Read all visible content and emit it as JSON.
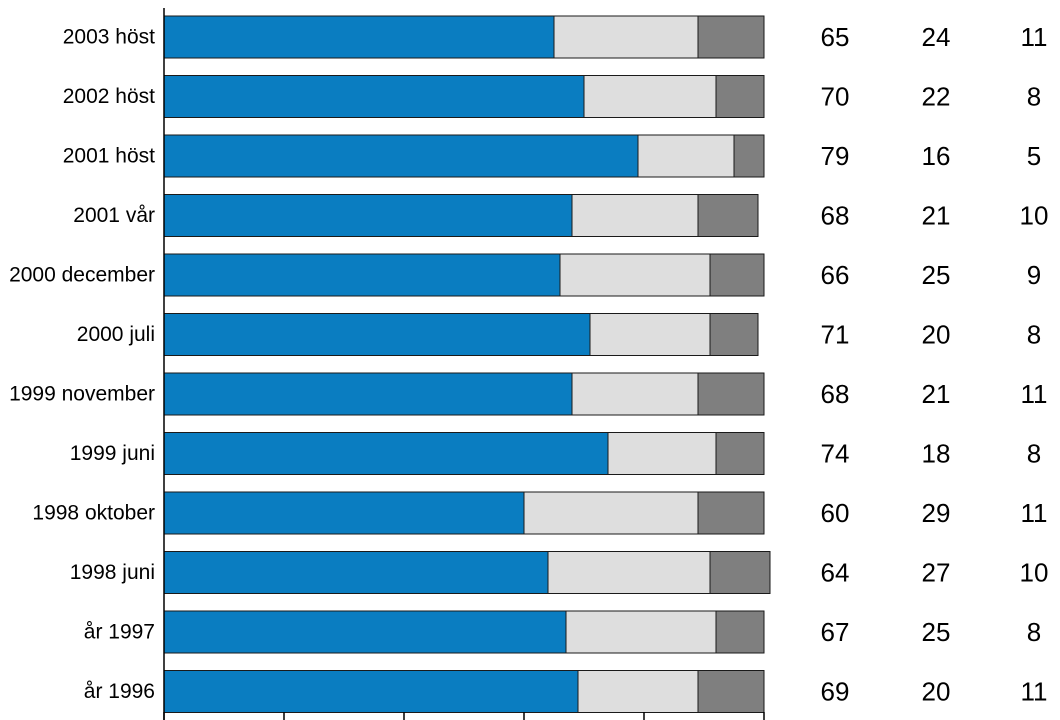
{
  "chart_data": {
    "type": "bar",
    "orientation": "horizontal",
    "stacked": true,
    "categories": [
      "2003 höst",
      "2002 höst",
      "2001 höst",
      "2001 vår",
      "2000 december",
      "2000 juli",
      "1999 november",
      "1999 juni",
      "1998 oktober",
      "1998 juni",
      "år 1997",
      "år 1996"
    ],
    "series": [
      {
        "values": [
          65,
          70,
          79,
          68,
          66,
          71,
          68,
          74,
          60,
          64,
          67,
          69
        ],
        "color": "#0a7dc1"
      },
      {
        "values": [
          24,
          22,
          16,
          21,
          25,
          20,
          21,
          18,
          29,
          27,
          25,
          20
        ],
        "color": "#dedede"
      },
      {
        "values": [
          11,
          8,
          5,
          10,
          9,
          8,
          11,
          8,
          11,
          10,
          8,
          11
        ],
        "color": "#7f7f7f"
      }
    ],
    "xlim": [
      0,
      100
    ],
    "grid": false,
    "legend": "none"
  }
}
